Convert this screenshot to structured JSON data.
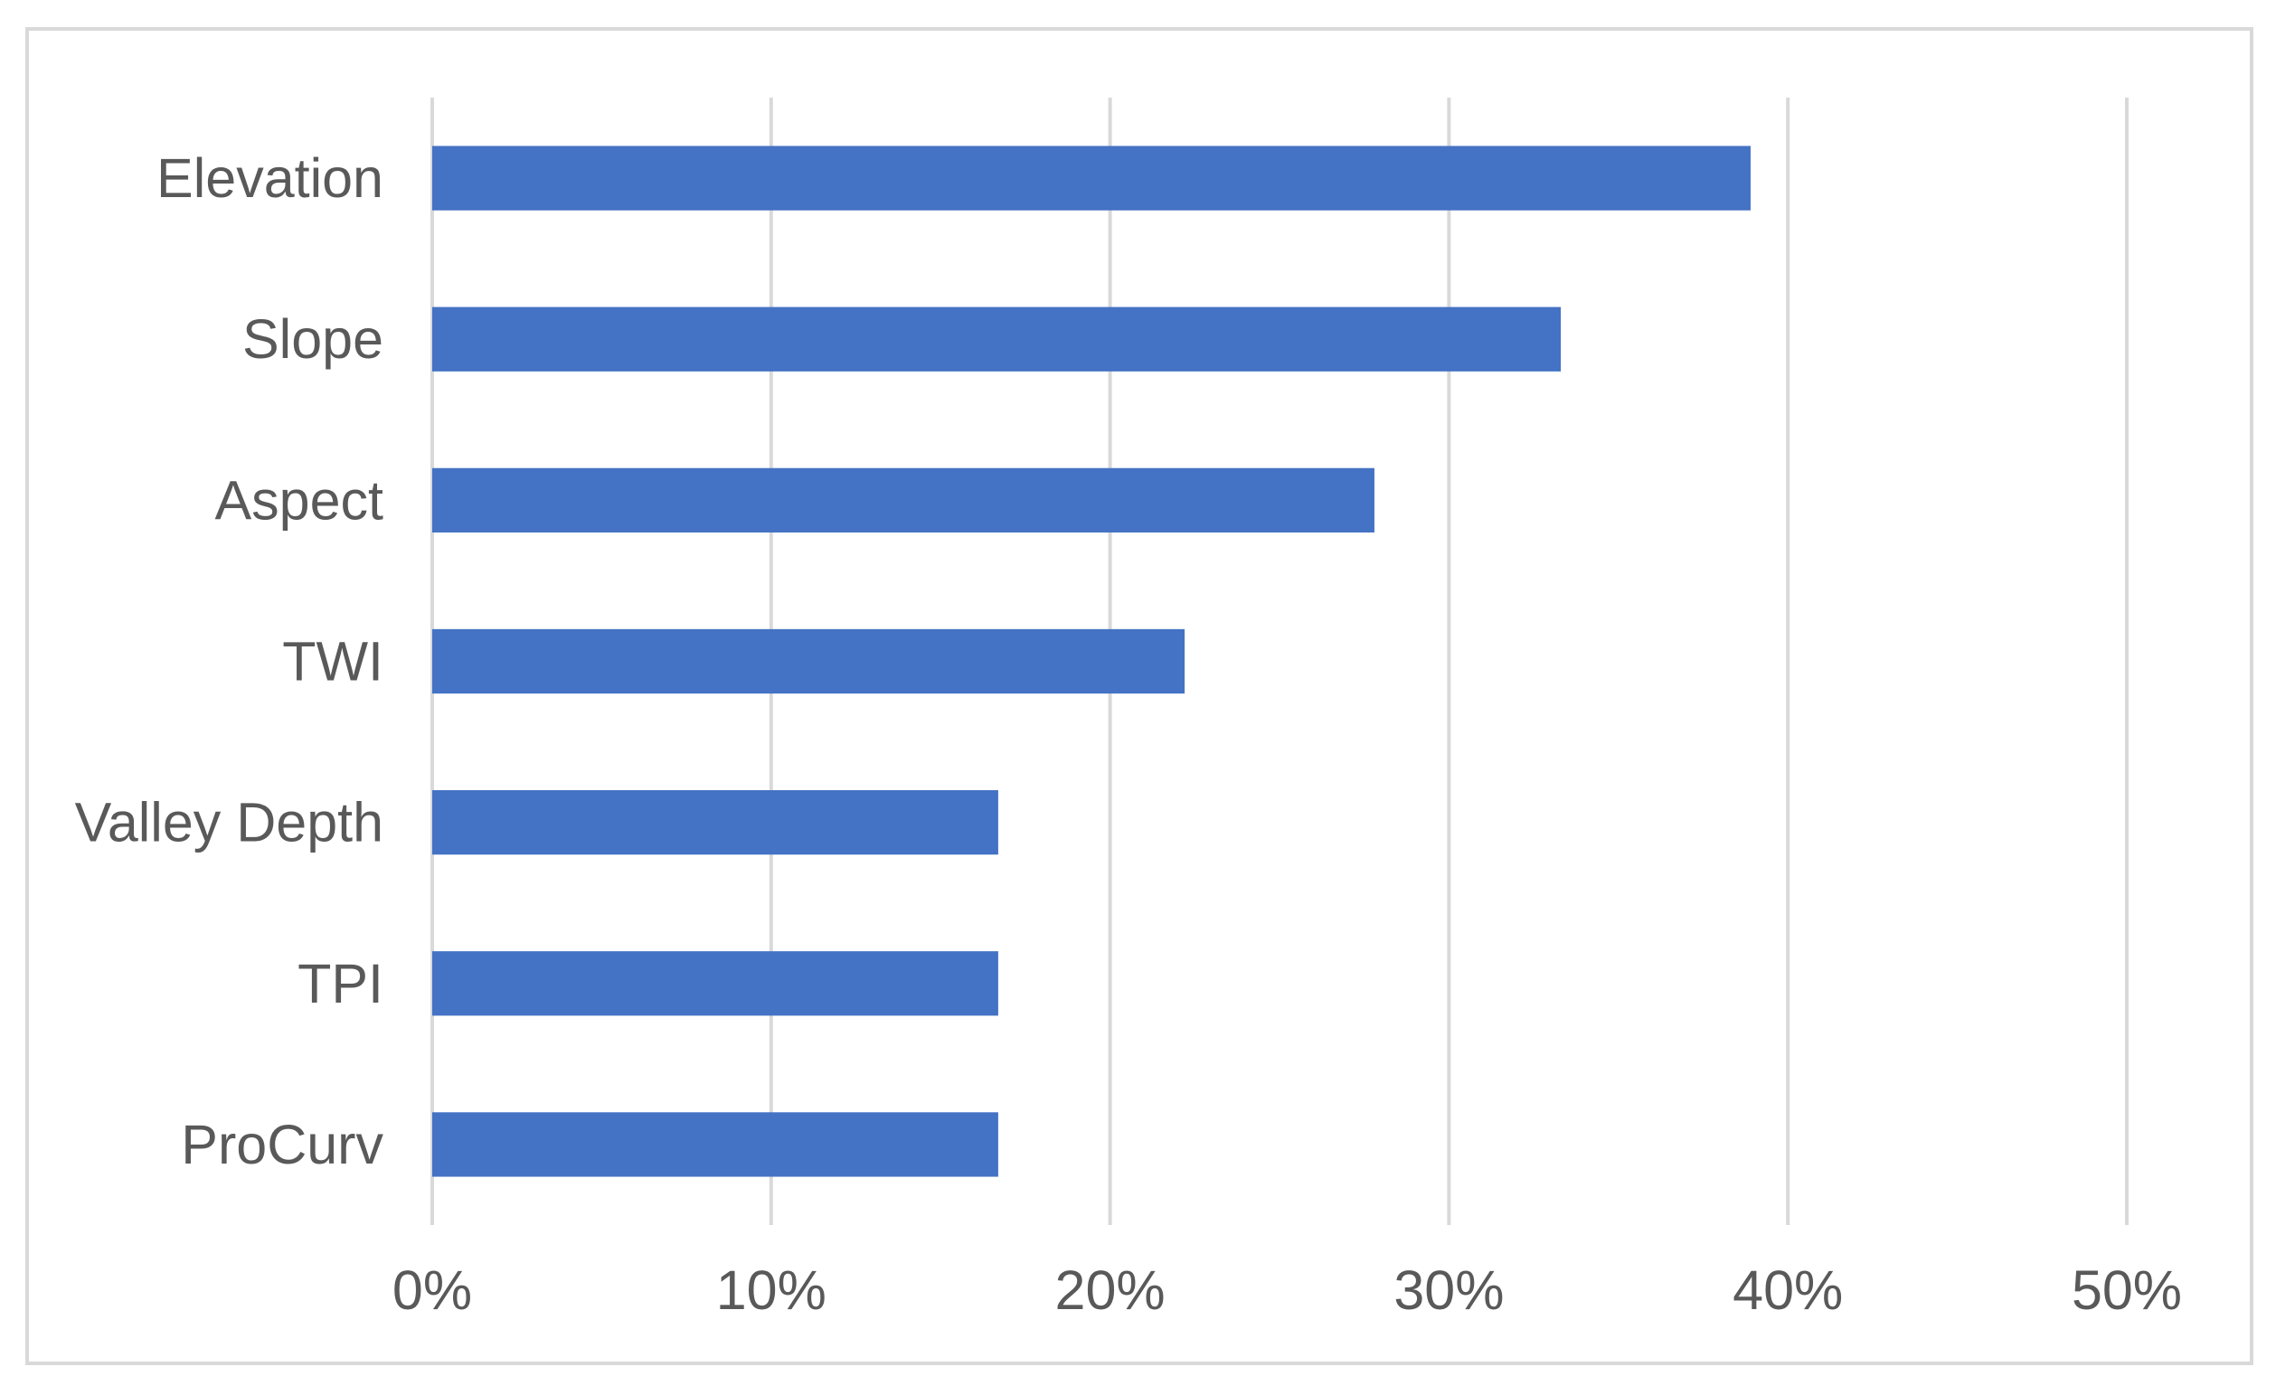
{
  "chart_data": {
    "type": "bar",
    "orientation": "horizontal",
    "categories": [
      "Elevation",
      "Slope",
      "Aspect",
      "TWI",
      "Valley Depth",
      "TPI",
      "ProCurv"
    ],
    "values": [
      0.389,
      0.333,
      0.278,
      0.222,
      0.167,
      0.167,
      0.167
    ],
    "title": "",
    "xlabel": "",
    "ylabel": "",
    "xlim": [
      0,
      0.5
    ],
    "x_ticks": [
      0,
      0.1,
      0.2,
      0.3,
      0.4,
      0.5
    ],
    "x_tick_labels": [
      "0%",
      "10%",
      "20%",
      "30%",
      "40%",
      "50%"
    ],
    "grid": "vertical",
    "legend": "none",
    "bar_color": "#4472c4",
    "grid_color": "#d9d9d9",
    "text_color": "#595959",
    "frame_color": "#d9d9d9"
  }
}
